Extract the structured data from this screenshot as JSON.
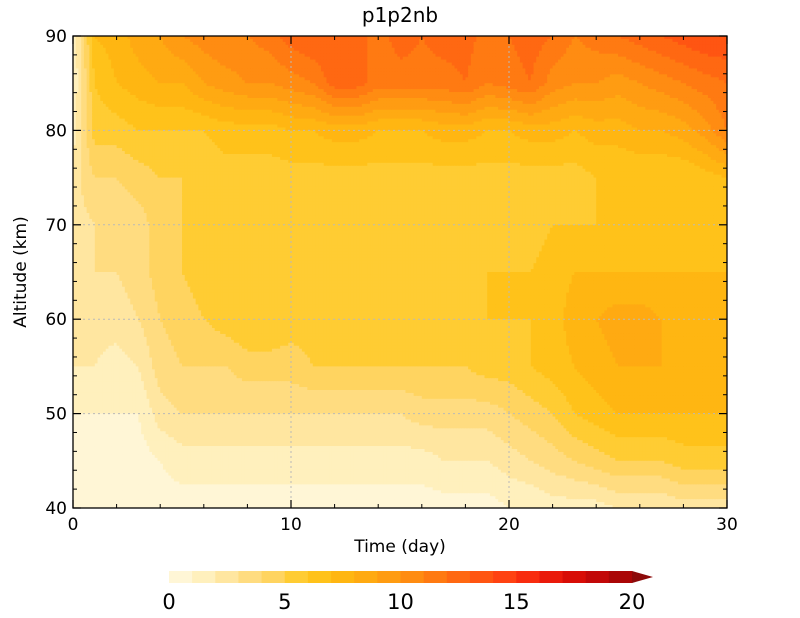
{
  "chart_data": {
    "type": "heatmap",
    "title": "p1p2nb",
    "xlabel": "Time (day)",
    "ylabel": "Altitude (km)",
    "xlim": [
      0,
      30
    ],
    "ylim": [
      40,
      90
    ],
    "x_ticks": [
      "0",
      "10",
      "20",
      "30"
    ],
    "y_ticks": [
      "40",
      "50",
      "60",
      "70",
      "80",
      "90"
    ],
    "grid": "dotted at x=10, 20 and y=50, 60, 70, 80",
    "colorbar": {
      "placement": "bottom",
      "min": 0,
      "max": 20,
      "step": 1,
      "extend": "max",
      "tick_labels": [
        "0",
        "5",
        "10",
        "15",
        "20"
      ],
      "colors": [
        "#fff6d6",
        "#fff0bd",
        "#ffe6a0",
        "#ffdc80",
        "#ffd460",
        "#ffcc33",
        "#ffc21a",
        "#ffb612",
        "#ffaa12",
        "#ff9c12",
        "#ff8c12",
        "#ff7a12",
        "#ff6812",
        "#ff5512",
        "#ff4212",
        "#f82c0e",
        "#ea1a0a",
        "#d80d06",
        "#c20808",
        "#aa0606",
        "#8c0a0a"
      ]
    },
    "x": [
      0,
      1,
      2,
      3,
      4,
      5,
      6,
      7,
      8,
      9,
      10,
      11,
      12,
      13,
      14,
      15,
      16,
      17,
      18,
      19,
      20,
      21,
      22,
      23,
      24,
      25,
      26,
      27,
      28,
      29,
      30
    ],
    "y": [
      40,
      45,
      50,
      55,
      60,
      65,
      70,
      75,
      80,
      85,
      90
    ],
    "z": [
      [
        0.5,
        0.5,
        0.5,
        0.5,
        0.5,
        0.5,
        0.5,
        0.5,
        0.5,
        0.5,
        0.5,
        0.5,
        0.5,
        0.5,
        0.5,
        0.5,
        0.5,
        0.5,
        0.5,
        0.5,
        1,
        1,
        1.5,
        1.5,
        1.5,
        2,
        2,
        2,
        2.5,
        2.5,
        2.5
      ],
      [
        0.5,
        0.5,
        0.5,
        0.5,
        1,
        1.5,
        1.5,
        1.5,
        1.5,
        1.5,
        1.5,
        1.5,
        1.5,
        1.5,
        1.5,
        1.5,
        1.5,
        2,
        2,
        2,
        2.5,
        3,
        3.5,
        4,
        4.5,
        5,
        5,
        5,
        5.5,
        5.5,
        5.5
      ],
      [
        1,
        1,
        1,
        1,
        2.5,
        3,
        3,
        3,
        3,
        3,
        3,
        3,
        3,
        3,
        3,
        3,
        3.5,
        3.5,
        3.5,
        3.5,
        4,
        4.5,
        5,
        6,
        6.5,
        7,
        7,
        7,
        7,
        7,
        7
      ],
      [
        2,
        2,
        1.5,
        2,
        3.5,
        4,
        4,
        4,
        4.5,
        4.5,
        4.5,
        5,
        5,
        5,
        5,
        5,
        5,
        5,
        5,
        5.5,
        5.5,
        6,
        6.5,
        7,
        7.5,
        8,
        8,
        8,
        7.5,
        7.5,
        7.5
      ],
      [
        2.5,
        2.5,
        2.5,
        3,
        4,
        4.5,
        5,
        5.5,
        6,
        6,
        5.5,
        5.5,
        5.5,
        5.5,
        5.5,
        5.5,
        5.5,
        5.5,
        5.5,
        6,
        6,
        6,
        6.5,
        7.5,
        8,
        8.5,
        8.5,
        8,
        8,
        7.5,
        7.5
      ],
      [
        3,
        3,
        3,
        3.5,
        4.5,
        5,
        5.5,
        5.5,
        5.5,
        5.5,
        5.5,
        5.5,
        5.5,
        5.5,
        5.5,
        5.5,
        5.5,
        5.5,
        5.5,
        6,
        6,
        6,
        6.5,
        7,
        7,
        7,
        7,
        7,
        7,
        7,
        7
      ],
      [
        2.5,
        3,
        3,
        3.5,
        4.5,
        5,
        5,
        5,
        5.5,
        5,
        5.5,
        5.5,
        5.5,
        5.5,
        5,
        5.5,
        5,
        5,
        5,
        5.5,
        5.5,
        5.5,
        6,
        6,
        6,
        6,
        6,
        6,
        6,
        6,
        6
      ],
      [
        2.5,
        4,
        4,
        4.5,
        5,
        5,
        5,
        5.5,
        5.5,
        5.5,
        5.5,
        5.5,
        5.5,
        5.5,
        5.5,
        5.5,
        5.5,
        5.5,
        5.5,
        5.5,
        5.5,
        5.5,
        5.5,
        5.5,
        6,
        6,
        6,
        6,
        6,
        6.5,
        7
      ],
      [
        1.5,
        5.5,
        5.5,
        6,
        6,
        6,
        6,
        6.5,
        6.5,
        6.5,
        7,
        7,
        7.5,
        7.5,
        7,
        7,
        7,
        7.5,
        7.5,
        7,
        7,
        7.5,
        7.5,
        7,
        7.5,
        7.5,
        8,
        8,
        8.5,
        9.5,
        11
      ],
      [
        1,
        6,
        7,
        7.5,
        8,
        8,
        9,
        9.5,
        10,
        10,
        10.5,
        11,
        12.5,
        12.5,
        11.5,
        11.5,
        11.5,
        11.5,
        12,
        11,
        11.5,
        12,
        10.5,
        10,
        10,
        9.5,
        10,
        10.5,
        11,
        11.5,
        12
      ],
      [
        1,
        7,
        7.5,
        8.5,
        9,
        10,
        10.5,
        11,
        11,
        11.5,
        12.5,
        13,
        13,
        12.5,
        11.5,
        12.5,
        12,
        12.5,
        12.5,
        11.5,
        12,
        12.5,
        12,
        11,
        11.5,
        12,
        12.5,
        13,
        13.5,
        14,
        14
      ]
    ]
  }
}
